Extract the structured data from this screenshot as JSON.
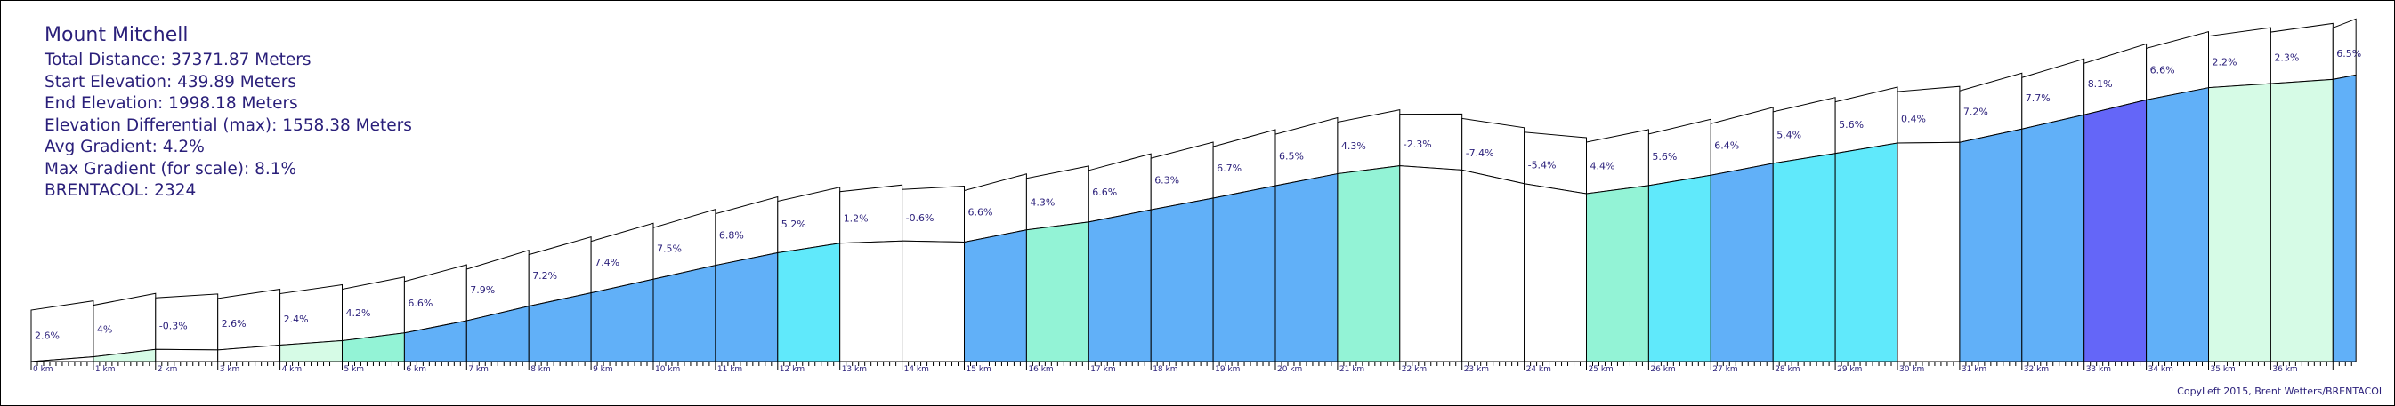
{
  "header": {
    "title": "Mount Mitchell",
    "stats": [
      "Total Distance: 37371.87 Meters",
      "Start Elevation: 439.89 Meters",
      "End Elevation: 1998.18 Meters",
      "Elevation Differential (max): 1558.38 Meters",
      "Avg Gradient: 4.2%",
      "Max Gradient (for scale): 8.1%",
      "BRENTACOL: 2324"
    ]
  },
  "footer": {
    "credit": "CopyLeft 2015, Brent Wetters/BRENTACOL"
  },
  "colors": {
    "text": "#2a1f7a",
    "flat": "#ffffff",
    "gentle": "#d6fbe6",
    "easy": "#93f3d6",
    "moderate": "#60e9fb",
    "hard": "#61b0f8",
    "steep": "#6466f8"
  },
  "chart_data": {
    "type": "area",
    "title": "Mount Mitchell",
    "xlabel": "",
    "ylabel": "",
    "x_unit": "km",
    "xlim": [
      0,
      37.37
    ],
    "ylim": [
      439.89,
      1998.18
    ],
    "km_labels": [
      "0 km",
      "1 km",
      "2 km",
      "3 km",
      "4 km",
      "5 km",
      "6 km",
      "7 km",
      "8 km",
      "9 km",
      "10 km",
      "11 km",
      "12 km",
      "13 km",
      "14 km",
      "15 km",
      "16 km",
      "17 km",
      "18 km",
      "19 km",
      "20 km",
      "21 km",
      "22 km",
      "23 km",
      "24 km",
      "25 km",
      "26 km",
      "27 km",
      "28 km",
      "29 km",
      "30 km",
      "31 km",
      "32 km",
      "33 km",
      "34 km",
      "35 km",
      "36 km"
    ],
    "segments": [
      {
        "km": 0,
        "gradient": "2.6%",
        "gradient_value": 2.6,
        "color": "#ffffff"
      },
      {
        "km": 1,
        "gradient": "4%",
        "gradient_value": 4.0,
        "color": "#d6fbe6"
      },
      {
        "km": 2,
        "gradient": "-0.3%",
        "gradient_value": -0.3,
        "color": "#ffffff"
      },
      {
        "km": 3,
        "gradient": "2.6%",
        "gradient_value": 2.6,
        "color": "#ffffff"
      },
      {
        "km": 4,
        "gradient": "2.4%",
        "gradient_value": 2.4,
        "color": "#d6fbe6"
      },
      {
        "km": 5,
        "gradient": "4.2%",
        "gradient_value": 4.2,
        "color": "#93f3d6"
      },
      {
        "km": 6,
        "gradient": "6.6%",
        "gradient_value": 6.6,
        "color": "#61b0f8"
      },
      {
        "km": 7,
        "gradient": "7.9%",
        "gradient_value": 7.9,
        "color": "#61b0f8"
      },
      {
        "km": 8,
        "gradient": "7.2%",
        "gradient_value": 7.2,
        "color": "#61b0f8"
      },
      {
        "km": 9,
        "gradient": "7.4%",
        "gradient_value": 7.4,
        "color": "#61b0f8"
      },
      {
        "km": 10,
        "gradient": "7.5%",
        "gradient_value": 7.5,
        "color": "#61b0f8"
      },
      {
        "km": 11,
        "gradient": "6.8%",
        "gradient_value": 6.8,
        "color": "#61b0f8"
      },
      {
        "km": 12,
        "gradient": "5.2%",
        "gradient_value": 5.2,
        "color": "#60e9fb"
      },
      {
        "km": 13,
        "gradient": "1.2%",
        "gradient_value": 1.2,
        "color": "#ffffff"
      },
      {
        "km": 14,
        "gradient": "-0.6%",
        "gradient_value": -0.6,
        "color": "#ffffff"
      },
      {
        "km": 15,
        "gradient": "6.6%",
        "gradient_value": 6.6,
        "color": "#61b0f8"
      },
      {
        "km": 16,
        "gradient": "4.3%",
        "gradient_value": 4.3,
        "color": "#93f3d6"
      },
      {
        "km": 17,
        "gradient": "6.6%",
        "gradient_value": 6.6,
        "color": "#61b0f8"
      },
      {
        "km": 18,
        "gradient": "6.3%",
        "gradient_value": 6.3,
        "color": "#61b0f8"
      },
      {
        "km": 19,
        "gradient": "6.7%",
        "gradient_value": 6.7,
        "color": "#61b0f8"
      },
      {
        "km": 20,
        "gradient": "6.5%",
        "gradient_value": 6.5,
        "color": "#61b0f8"
      },
      {
        "km": 21,
        "gradient": "4.3%",
        "gradient_value": 4.3,
        "color": "#93f3d6"
      },
      {
        "km": 22,
        "gradient": "-2.3%",
        "gradient_value": -2.3,
        "color": "#ffffff"
      },
      {
        "km": 23,
        "gradient": "-7.4%",
        "gradient_value": -7.4,
        "color": "#ffffff"
      },
      {
        "km": 24,
        "gradient": "-5.4%",
        "gradient_value": -5.4,
        "color": "#ffffff"
      },
      {
        "km": 25,
        "gradient": "4.4%",
        "gradient_value": 4.4,
        "color": "#93f3d6"
      },
      {
        "km": 26,
        "gradient": "5.6%",
        "gradient_value": 5.6,
        "color": "#60e9fb"
      },
      {
        "km": 27,
        "gradient": "6.4%",
        "gradient_value": 6.4,
        "color": "#61b0f8"
      },
      {
        "km": 28,
        "gradient": "5.4%",
        "gradient_value": 5.4,
        "color": "#60e9fb"
      },
      {
        "km": 29,
        "gradient": "5.6%",
        "gradient_value": 5.6,
        "color": "#60e9fb"
      },
      {
        "km": 30,
        "gradient": "0.4%",
        "gradient_value": 0.4,
        "color": "#ffffff"
      },
      {
        "km": 31,
        "gradient": "7.2%",
        "gradient_value": 7.2,
        "color": "#61b0f8"
      },
      {
        "km": 32,
        "gradient": "7.7%",
        "gradient_value": 7.7,
        "color": "#61b0f8"
      },
      {
        "km": 33,
        "gradient": "8.1%",
        "gradient_value": 8.1,
        "color": "#6466f8"
      },
      {
        "km": 34,
        "gradient": "6.6%",
        "gradient_value": 6.6,
        "color": "#61b0f8"
      },
      {
        "km": 35,
        "gradient": "2.2%",
        "gradient_value": 2.2,
        "color": "#d6fbe6"
      },
      {
        "km": 36,
        "gradient": "2.3%",
        "gradient_value": 2.3,
        "color": "#d6fbe6"
      },
      {
        "km": 37,
        "gradient": "6.5%",
        "gradient_value": 6.5,
        "color": "#61b0f8"
      }
    ]
  }
}
